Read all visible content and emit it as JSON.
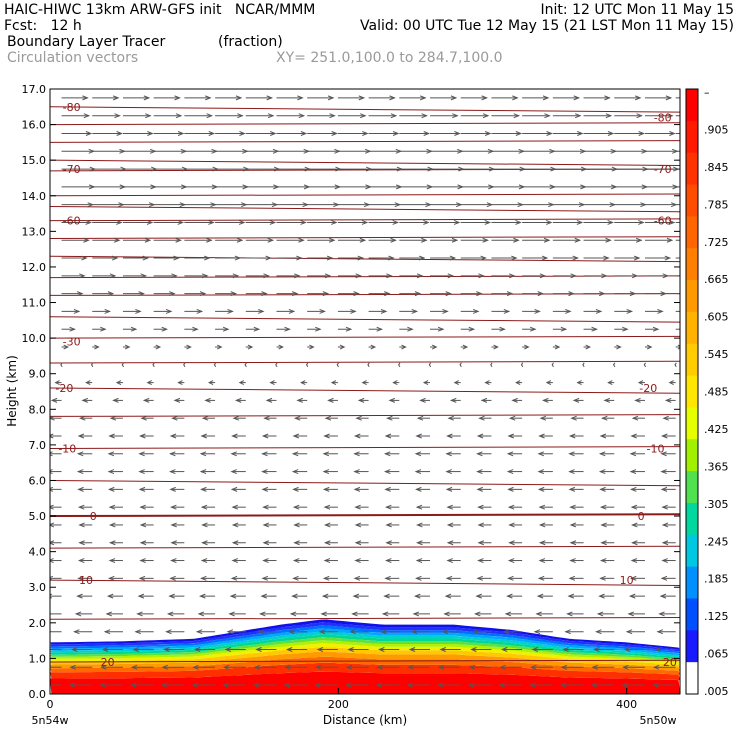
{
  "header": {
    "line1_left": "HAIC-HIWC 13km ARW-GFS init   NCAR/MMM",
    "line1_right": "Init: 12 UTC Mon 11 May 15",
    "line2_left": "Fcst:   12 h",
    "line2_right": "Valid: 00 UTC Tue 12 May 15 (21 LST Mon 11 May 15)",
    "line3_left": "Boundary Layer Tracer",
    "line3_mid": "(fraction)",
    "line4_left": "Circulation vectors",
    "line4_mid": "XY= 251.0,100.0 to 284.7,100.0"
  },
  "chart_data": {
    "type": "heatmap",
    "xlabel": "Distance (km)",
    "ylabel": "Height (km)",
    "xlim": [
      0,
      437
    ],
    "ylim": [
      0,
      17
    ],
    "x_ticks": [
      0,
      200,
      400
    ],
    "y_ticks": [
      "0.0",
      "1.0",
      "2.0",
      "3.0",
      "4.0",
      "5.0",
      "6.0",
      "7.0",
      "8.0",
      "9.0",
      "10.0",
      "11.0",
      "12.0",
      "13.0",
      "14.0",
      "15.0",
      "16.0",
      "17.0"
    ],
    "x_end_labels": {
      "left": "5n54w",
      "right": "5n50w"
    },
    "colorbar": {
      "labels": [
        "–",
        ".905",
        ".845",
        ".785",
        ".725",
        ".665",
        ".605",
        ".545",
        ".485",
        ".425",
        ".365",
        ".305",
        ".245",
        ".185",
        ".125",
        ".065",
        ".005"
      ],
      "colors": [
        "#ff0000",
        "#ff1a00",
        "#ff3300",
        "#ff4d00",
        "#ff6600",
        "#ff8000",
        "#ff9900",
        "#ffb300",
        "#ffcc00",
        "#ffe600",
        "#e6ff00",
        "#a0f000",
        "#50e050",
        "#00d8a0",
        "#00c8e0",
        "#0090ff",
        "#0050ff",
        "#1a1aff",
        "#ffffff"
      ]
    },
    "tracer_top": [
      {
        "x": 0,
        "z": 1.45
      },
      {
        "x": 50,
        "z": 1.48
      },
      {
        "x": 100,
        "z": 1.55
      },
      {
        "x": 130,
        "z": 1.75
      },
      {
        "x": 160,
        "z": 1.95
      },
      {
        "x": 190,
        "z": 2.1
      },
      {
        "x": 230,
        "z": 1.95
      },
      {
        "x": 280,
        "z": 1.95
      },
      {
        "x": 320,
        "z": 1.8
      },
      {
        "x": 360,
        "z": 1.55
      },
      {
        "x": 400,
        "z": 1.45
      },
      {
        "x": 437,
        "z": 1.3
      }
    ],
    "isotherms": [
      {
        "label": "-80",
        "z": 16.5
      },
      {
        "label": "-70",
        "z": 14.7
      },
      {
        "label": "-60",
        "z": 13.3
      },
      {
        "label": "-30",
        "z": 10.0
      },
      {
        "label": "-20",
        "z": 8.6
      },
      {
        "label": "-10",
        "z": 6.9
      },
      {
        "label": "0",
        "z": 5.0
      },
      {
        "label": "10",
        "z": 3.2
      },
      {
        "label": "20",
        "z": 0.9
      }
    ],
    "isotherm_labels": [
      {
        "label": "-80",
        "x": 15,
        "z": 16.5
      },
      {
        "label": "-80",
        "x": 425,
        "z": 16.2
      },
      {
        "label": "-70",
        "x": 15,
        "z": 14.75
      },
      {
        "label": "-70",
        "x": 425,
        "z": 14.75
      },
      {
        "label": "-60",
        "x": 15,
        "z": 13.3
      },
      {
        "label": "-60",
        "x": 425,
        "z": 13.3
      },
      {
        "label": "-30",
        "x": 15,
        "z": 9.9
      },
      {
        "label": "-20",
        "x": 10,
        "z": 8.6
      },
      {
        "label": "-20",
        "x": 415,
        "z": 8.6
      },
      {
        "label": "-10",
        "x": 12,
        "z": 6.9
      },
      {
        "label": "-10",
        "x": 420,
        "z": 6.9
      },
      {
        "label": "0",
        "x": 30,
        "z": 5.0
      },
      {
        "label": "0",
        "x": 410,
        "z": 5.0
      },
      {
        "label": "10",
        "x": 25,
        "z": 3.2
      },
      {
        "label": "10",
        "x": 400,
        "z": 3.2
      },
      {
        "label": "20",
        "x": 40,
        "z": 0.9
      },
      {
        "label": "20",
        "x": 430,
        "z": 0.9
      }
    ],
    "wind_profile": [
      {
        "z": 0.3,
        "u": -1.6
      },
      {
        "z": 1.0,
        "u": -1.5
      },
      {
        "z": 2.0,
        "u": -1.2
      },
      {
        "z": 3.0,
        "u": -1.0
      },
      {
        "z": 4.0,
        "u": -0.9
      },
      {
        "z": 5.0,
        "u": -0.9
      },
      {
        "z": 6.0,
        "u": -1.0
      },
      {
        "z": 7.0,
        "u": -1.0
      },
      {
        "z": 8.0,
        "u": -0.8
      },
      {
        "z": 9.0,
        "u": -0.3
      },
      {
        "z": 9.6,
        "u": 0.3
      },
      {
        "z": 10.2,
        "u": 0.9
      },
      {
        "z": 11.0,
        "u": 1.4
      },
      {
        "z": 12.0,
        "u": 1.7
      },
      {
        "z": 13.0,
        "u": 2.0
      },
      {
        "z": 14.0,
        "u": 2.3
      },
      {
        "z": 15.0,
        "u": 2.4
      },
      {
        "z": 16.0,
        "u": 2.0
      },
      {
        "z": 17.0,
        "u": 1.8
      }
    ]
  }
}
